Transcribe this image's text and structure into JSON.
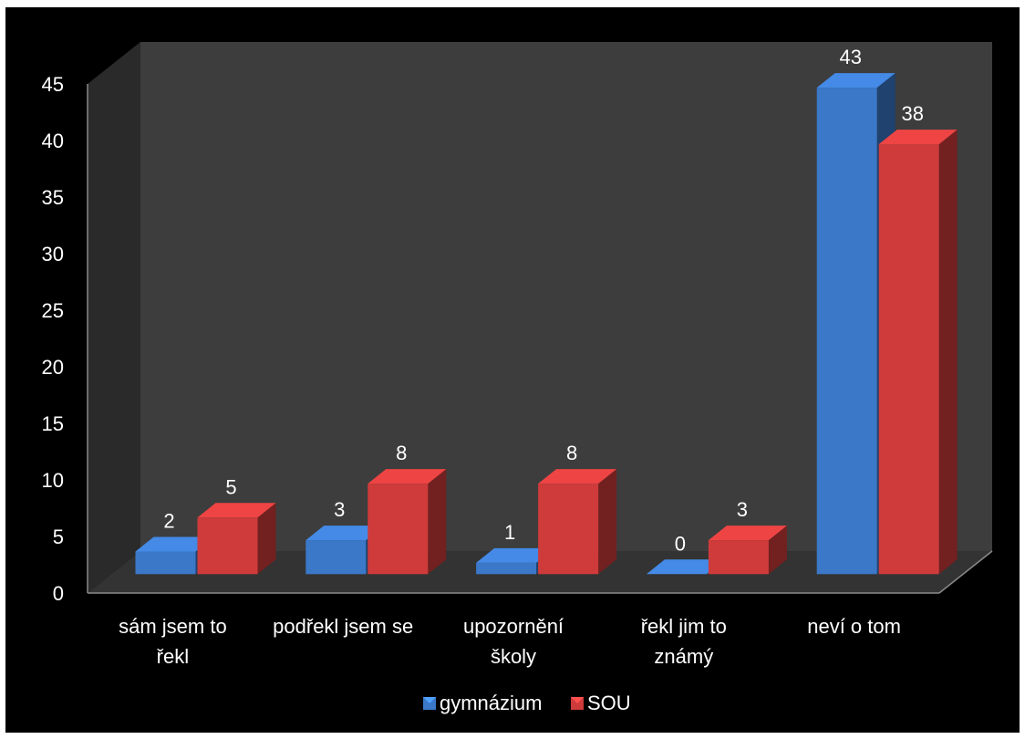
{
  "chart_data": {
    "type": "bar",
    "style": "3d-clustered-column",
    "categories": [
      [
        "sám jsem to",
        "řekl"
      ],
      [
        "podřekl jsem se"
      ],
      [
        "upozornění",
        "školy"
      ],
      [
        "řekl jim to",
        "známý"
      ],
      [
        "neví o tom"
      ]
    ],
    "series": [
      {
        "name": "gymnázium",
        "values": [
          2,
          3,
          1,
          0,
          43
        ],
        "color": "#3b78c8"
      },
      {
        "name": "SOU",
        "values": [
          5,
          8,
          8,
          3,
          38
        ],
        "color": "#cf3b3b"
      }
    ],
    "yticks": [
      "0",
      "5",
      "10",
      "15",
      "20",
      "25",
      "30",
      "35",
      "40",
      "45"
    ],
    "ylim": [
      0,
      45
    ],
    "grid": false,
    "data_labels": true,
    "legend_position": "bottom",
    "background": "#000000",
    "wall_color": "#3d3d3d",
    "side_wall_color": "#2a2a2a",
    "floor_color": "#333333"
  }
}
